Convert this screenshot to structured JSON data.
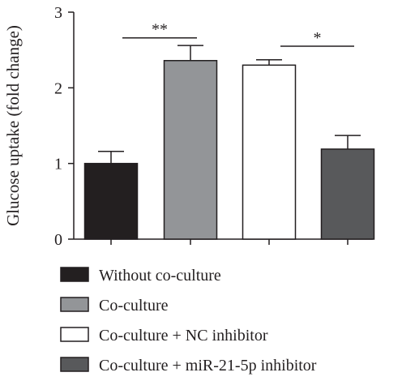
{
  "chart_data": {
    "type": "bar",
    "categories": [
      "Without co-culture",
      "Co-culture",
      "Co-culture + NC inhibitor",
      "Co-culture + miR-21-5p inhibitor"
    ],
    "values": [
      1.0,
      2.36,
      2.3,
      1.19
    ],
    "errors": [
      0.16,
      0.2,
      0.07,
      0.18
    ],
    "colors": [
      "#231f20",
      "#939598",
      "#ffffff",
      "#58595b"
    ],
    "edge_color": "#231f20",
    "ylabel": "Glucose uptake (fold change)",
    "ylim": [
      0,
      3
    ],
    "yticks": [
      "0",
      "1",
      "2",
      "3"
    ],
    "grid": false,
    "legend": {
      "position": "bottom",
      "entries": [
        "Without co-culture",
        "Co-culture",
        "Co-culture + NC inhibitor",
        "Co-culture + miR-21-5p inhibitor"
      ]
    },
    "annotations": [
      {
        "text": "**",
        "between": [
          0,
          1
        ],
        "y": 2.66
      },
      {
        "text": "*",
        "between": [
          2,
          3
        ],
        "y": 2.55
      }
    ]
  }
}
